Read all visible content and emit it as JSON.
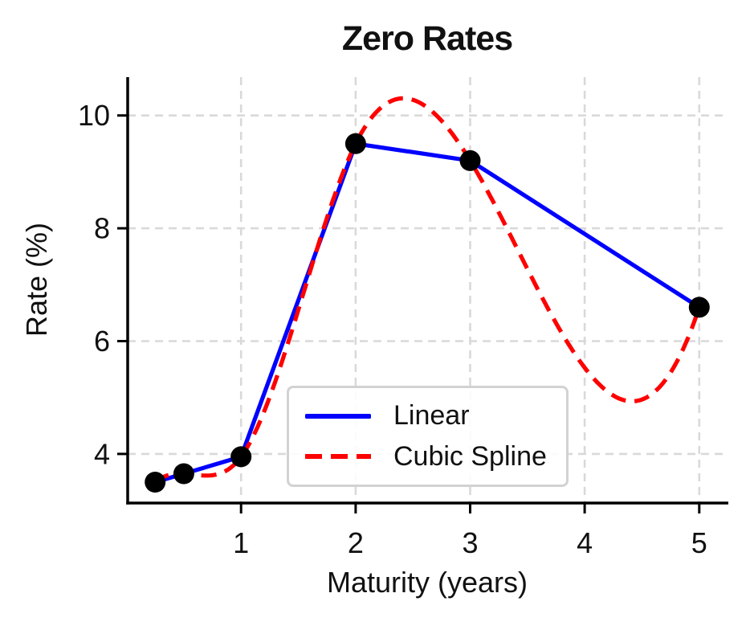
{
  "chart_data": {
    "type": "line",
    "title": "Zero Rates",
    "xlabel": "Maturity (years)",
    "ylabel": "Rate (%)",
    "x": [
      0.25,
      0.5,
      1.0,
      2.0,
      3.0,
      5.0
    ],
    "series": [
      {
        "name": "Linear",
        "interpolation": "linear",
        "color": "#0000ff",
        "line_style": "solid",
        "values": [
          3.5,
          3.65,
          3.95,
          9.5,
          9.2,
          6.6
        ]
      },
      {
        "name": "Cubic Spline",
        "interpolation": "cubic-spline",
        "color": "#ff0000",
        "line_style": "dashed",
        "values": [
          3.5,
          3.65,
          3.95,
          9.5,
          9.2,
          6.6
        ]
      }
    ],
    "marker": {
      "shape": "circle",
      "color": "#000000"
    },
    "xticks": [
      "1",
      "2",
      "3",
      "4",
      "5"
    ],
    "yticks": [
      "4",
      "6",
      "8",
      "10"
    ],
    "xtick_values": [
      1,
      2,
      3,
      4,
      5
    ],
    "ytick_values": [
      4,
      6,
      8,
      10
    ],
    "xlim": [
      0.01,
      5.24
    ],
    "ylim": [
      3.13,
      10.68
    ],
    "grid": true,
    "grid_color": "#d9d9d9",
    "axis_color": "#000000",
    "legend_position": "lower-center",
    "legend_border_color": "#d2d2d2"
  }
}
